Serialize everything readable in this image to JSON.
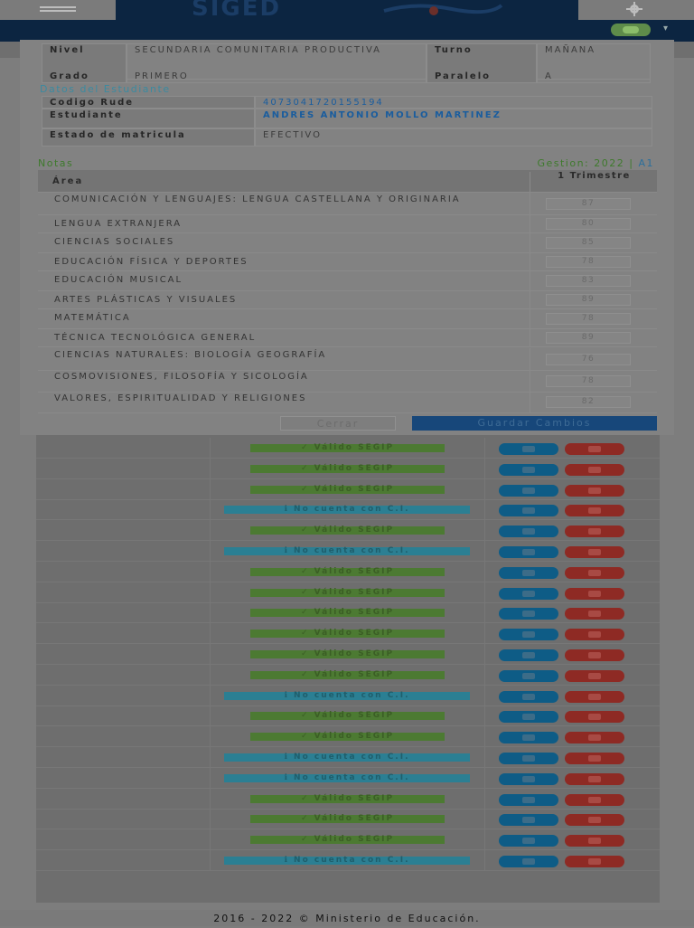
{
  "header": {
    "logo_text": "SIGED",
    "menu_icon": "hamburger-icon",
    "settings_icon": "gear-icon"
  },
  "modal": {
    "info": {
      "nivel_label": "Nivel",
      "nivel_value": "SECUNDARIA COMUNITARIA PRODUCTIVA",
      "turno_label": "Turno",
      "turno_value": "MAÑANA",
      "grado_label": "Grado",
      "grado_value": "PRIMERO",
      "paralelo_label": "Paralelo",
      "paralelo_value": "A"
    },
    "student_section_title": "Datos del Estudiante",
    "student": {
      "rude_label": "Codigo Rude",
      "rude_value": "4073041720155194",
      "name_label": "Estudiante",
      "name_value": "ANDRES ANTONIO MOLLO MARTINEZ",
      "status_label": "Estado de matricula",
      "status_value": "EFECTIVO"
    },
    "notas_label": "Notas",
    "gestion_label": "Gestion: 2022 |",
    "gestion_link": "A1",
    "grades_header": {
      "area": "Área",
      "trimestre": "1 Trimestre"
    },
    "grades": [
      {
        "subject": "COMUNICACIÓN Y LENGUAJES: LENGUA CASTELLANA Y ORIGINARIA",
        "score": "87"
      },
      {
        "subject": "LENGUA EXTRANJERA",
        "score": "80"
      },
      {
        "subject": "CIENCIAS SOCIALES",
        "score": "85"
      },
      {
        "subject": "EDUCACIÓN FÍSICA Y DEPORTES",
        "score": "78"
      },
      {
        "subject": "EDUCACIÓN MUSICAL",
        "score": "83"
      },
      {
        "subject": "ARTES PLÁSTICAS Y VISUALES",
        "score": "89"
      },
      {
        "subject": "MATEMÁTICA",
        "score": "78"
      },
      {
        "subject": "TÉCNICA TECNOLÓGICA GENERAL",
        "score": "89"
      },
      {
        "subject": "CIENCIAS NATURALES: BIOLOGÍA GEOGRAFÍA",
        "score": "76"
      },
      {
        "subject": "COSMOVISIONES, FILOSOFÍA Y SICOLOGÍA",
        "score": "78"
      },
      {
        "subject": "VALORES, ESPIRITUALIDAD Y RELIGIONES",
        "score": "82"
      }
    ],
    "close_label": "Cerrar",
    "save_label": "Guardar Cambios"
  },
  "background_rows": [
    {
      "status": "ok",
      "label": "✓ Válido SEGIP"
    },
    {
      "status": "ok",
      "label": "✓ Válido SEGIP"
    },
    {
      "status": "ok",
      "label": "✓ Válido SEGIP"
    },
    {
      "status": "no",
      "label": "ℹ No cuenta con C.I."
    },
    {
      "status": "ok",
      "label": "✓ Válido SEGIP"
    },
    {
      "status": "no",
      "label": "ℹ No cuenta con C.I."
    },
    {
      "status": "ok",
      "label": "✓ Válido SEGIP"
    },
    {
      "status": "ok",
      "label": "✓ Válido SEGIP"
    },
    {
      "status": "ok",
      "label": "✓ Válido SEGIP"
    },
    {
      "status": "ok",
      "label": "✓ Válido SEGIP"
    },
    {
      "status": "ok",
      "label": "✓ Válido SEGIP"
    },
    {
      "status": "ok",
      "label": "✓ Válido SEGIP"
    },
    {
      "status": "no",
      "label": "ℹ No cuenta con C.I."
    },
    {
      "status": "ok",
      "label": "✓ Válido SEGIP"
    },
    {
      "status": "ok",
      "label": "✓ Válido SEGIP"
    },
    {
      "status": "no",
      "label": "ℹ No cuenta con C.I."
    },
    {
      "status": "no",
      "label": "ℹ No cuenta con C.I."
    },
    {
      "status": "ok",
      "label": "✓ Válido SEGIP"
    },
    {
      "status": "ok",
      "label": "✓ Válido SEGIP"
    },
    {
      "status": "ok",
      "label": "✓ Válido SEGIP"
    },
    {
      "status": "no",
      "label": "ℹ No cuenta con C.I."
    }
  ],
  "footer": {
    "text": "2016 - 2022 © Ministerio de Educación."
  },
  "colors": {
    "ok": "#4c7a32",
    "no": "#2b7f93",
    "primary": "#17477a",
    "danger": "#8e2a24"
  }
}
